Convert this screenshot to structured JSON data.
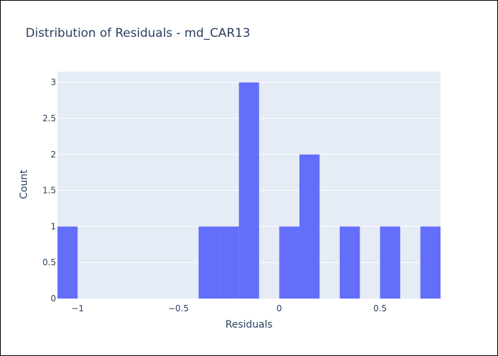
{
  "chart_data": {
    "type": "bar",
    "title": "Distribution of Residuals - md_CAR13",
    "xlabel": "Residuals",
    "ylabel": "Count",
    "bin_width": 0.1,
    "bins": [
      {
        "start": -1.1,
        "end": -1.0,
        "count": 1
      },
      {
        "start": -0.4,
        "end": -0.3,
        "count": 1
      },
      {
        "start": -0.3,
        "end": -0.2,
        "count": 1
      },
      {
        "start": -0.2,
        "end": -0.1,
        "count": 3
      },
      {
        "start": 0.0,
        "end": 0.1,
        "count": 1
      },
      {
        "start": 0.1,
        "end": 0.2,
        "count": 2
      },
      {
        "start": 0.3,
        "end": 0.4,
        "count": 1
      },
      {
        "start": 0.5,
        "end": 0.6,
        "count": 1
      },
      {
        "start": 0.7,
        "end": 0.8,
        "count": 1
      }
    ],
    "xlim": [
      -1.1,
      0.8
    ],
    "ylim": [
      0,
      3.15
    ],
    "x_ticks": [
      {
        "value": -1,
        "label": "−1"
      },
      {
        "value": -0.5,
        "label": "−0.5"
      },
      {
        "value": 0,
        "label": "0"
      },
      {
        "value": 0.5,
        "label": "0.5"
      }
    ],
    "y_ticks": [
      {
        "value": 0,
        "label": "0"
      },
      {
        "value": 0.5,
        "label": "0.5"
      },
      {
        "value": 1,
        "label": "1"
      },
      {
        "value": 1.5,
        "label": "1.5"
      },
      {
        "value": 2,
        "label": "2"
      },
      {
        "value": 2.5,
        "label": "2.5"
      },
      {
        "value": 3,
        "label": "3"
      }
    ],
    "grid": true,
    "colors": {
      "bar": "#636efa",
      "plot_background": "#e5ecf6",
      "grid": "#ffffff",
      "text": "#2a3f5f"
    }
  }
}
